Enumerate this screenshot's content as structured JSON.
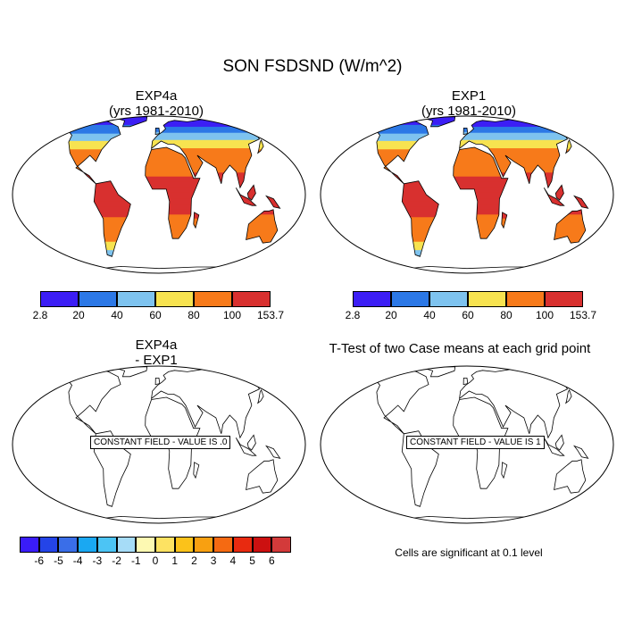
{
  "figure": {
    "title": "SON FSDSND (W/m^2)",
    "note": "Cells are significant at 0.1 level"
  },
  "panels": [
    {
      "id": "exp4a",
      "title1": "EXP4a",
      "title2": "(yrs 1981-2010)"
    },
    {
      "id": "exp1",
      "title1": "EXP1",
      "title2": "(yrs 1981-2010)"
    },
    {
      "id": "diff",
      "title1": "EXP4a",
      "title2": "- EXP1",
      "message": "CONSTANT FIELD - VALUE IS .0"
    },
    {
      "id": "ttest",
      "title1": "T-Test of two Case means at each grid point",
      "message": "CONSTANT FIELD - VALUE IS 1"
    }
  ],
  "colorbars": {
    "top": {
      "labels": [
        "2.8",
        "20",
        "40",
        "60",
        "80",
        "100",
        "153.7"
      ],
      "colors": [
        "#3c1ef5",
        "#2c78e6",
        "#7ec3ef",
        "#f7e350",
        "#f77a1a",
        "#d8302f"
      ]
    },
    "diff": {
      "labels": [
        "-6",
        "-5",
        "-4",
        "-3",
        "-2",
        "-1",
        "0",
        "1",
        "2",
        "3",
        "4",
        "5",
        "6"
      ],
      "colors": [
        "#3a1cf8",
        "#2444e8",
        "#3a6ee8",
        "#1aa8f2",
        "#4cc4f4",
        "#a6dcf7",
        "#fdf9b2",
        "#fde262",
        "#fbc21a",
        "#f8a011",
        "#f56a12",
        "#e82a10",
        "#cc1010",
        "#d33a3a"
      ]
    }
  },
  "chart_data": {
    "type": "heatmap",
    "variable": "FSDSND",
    "units": "W/m^2",
    "season": "SON",
    "panels": [
      {
        "name": "EXP4a",
        "period": "1981-2010",
        "min": 2.8,
        "max": 153.7,
        "levels": [
          20,
          40,
          60,
          80,
          100
        ]
      },
      {
        "name": "EXP1",
        "period": "1981-2010",
        "min": 2.8,
        "max": 153.7,
        "levels": [
          20,
          40,
          60,
          80,
          100
        ]
      },
      {
        "name": "EXP4a - EXP1",
        "constant_value": 0,
        "levels": [
          -6,
          -5,
          -4,
          -3,
          -2,
          -1,
          0,
          1,
          2,
          3,
          4,
          5,
          6
        ]
      },
      {
        "name": "T-Test",
        "constant_value": 1
      }
    ]
  }
}
